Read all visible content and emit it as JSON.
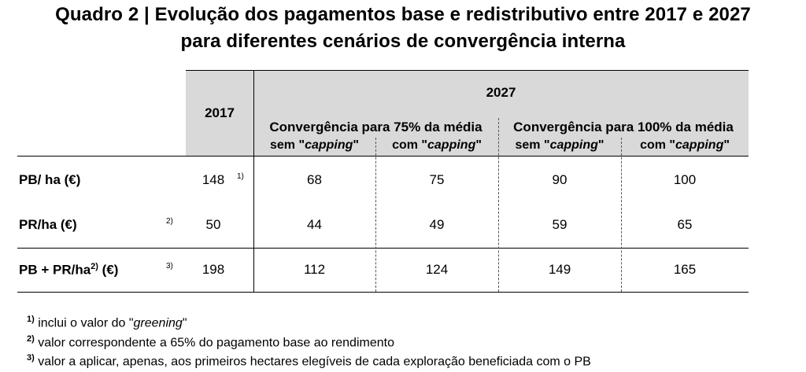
{
  "title": {
    "line1": "Quadro 2 | Evolução dos pagamentos base e redistributivo entre 2017 e 2027",
    "line2": "para diferentes cenários de convergência interna"
  },
  "table": {
    "col_2017": "2017",
    "col_2027": "2027",
    "group_75": "Convergência para 75% da média",
    "group_100": "Convergência para 100% da média",
    "sub_sem_prefix": "sem \"",
    "sub_com_prefix": "com \"",
    "sub_capping": "capping",
    "sub_suffix": "\"",
    "rows": [
      {
        "label": "PB/ ha (€)",
        "label_note": "",
        "note_2017": "1)",
        "note_left": "",
        "v2017": "148",
        "v75_sem": "68",
        "v75_com": "75",
        "v100_sem": "90",
        "v100_com": "100"
      },
      {
        "label": "PR/ha (€)",
        "label_note": "",
        "note_2017": "",
        "note_left": "2)",
        "v2017": "50",
        "v75_sem": "44",
        "v75_com": "49",
        "v100_sem": "59",
        "v100_com": "65"
      },
      {
        "label": "PB + PR/ha",
        "label_sup": "2)",
        "label_tail": " (€)",
        "note_2017": "",
        "note_left": "3)",
        "v2017": "198",
        "v75_sem": "112",
        "v75_com": "124",
        "v100_sem": "149",
        "v100_com": "165"
      }
    ]
  },
  "notes": [
    {
      "mark": "1)",
      "text_a": " inclui o valor do \"",
      "text_em": "greening",
      "text_b": "\""
    },
    {
      "mark": "2)",
      "text": " valor correspondente a 65% do pagamento base ao rendimento"
    },
    {
      "mark": "3)",
      "text": " valor a aplicar, apenas, aos primeiros hectares elegíveis de cada exploração beneficiada com o PB"
    }
  ]
}
